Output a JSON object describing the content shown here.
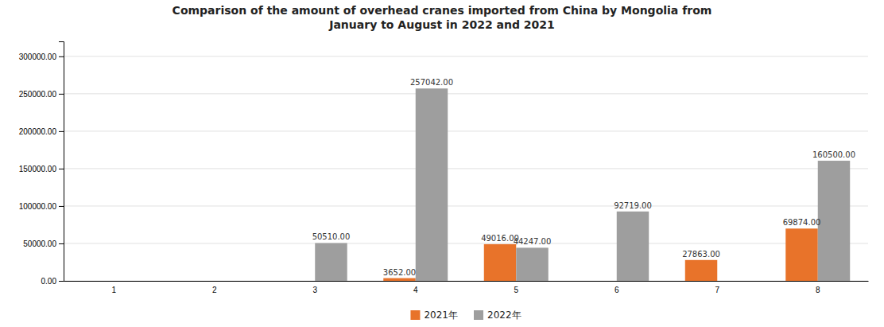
{
  "chart_data": {
    "type": "bar",
    "title": "Comparison of the amount of overhead cranes imported from China by Mongolia from\nJanuary to August in 2022 and 2021",
    "categories": [
      "1",
      "2",
      "3",
      "4",
      "5",
      "6",
      "7",
      "8"
    ],
    "series": [
      {
        "name": "2021年",
        "color": "#E8732A",
        "values": [
          0,
          0,
          0,
          3652.0,
          49016.0,
          0,
          27863.0,
          69874.0
        ],
        "value_labels": [
          null,
          null,
          null,
          "3652.00",
          "49016.00",
          null,
          "27863.00",
          "69874.00"
        ]
      },
      {
        "name": "2022年",
        "color": "#9E9E9E",
        "values": [
          0,
          0,
          50510.0,
          257042.0,
          44247.0,
          92719.0,
          0,
          160500.0
        ],
        "value_labels": [
          null,
          null,
          "50510.00",
          "257042.00",
          "44247.00",
          "92719.00",
          null,
          "160500.00"
        ]
      }
    ],
    "ylim": [
      0,
      320000
    ],
    "yticks": [
      {
        "value": 0,
        "label": "0.00"
      },
      {
        "value": 50000,
        "label": "50000.00"
      },
      {
        "value": 100000,
        "label": "100000.00"
      },
      {
        "value": 150000,
        "label": "150000.00"
      },
      {
        "value": 200000,
        "label": "200000.00"
      },
      {
        "value": 250000,
        "label": "250000.00"
      },
      {
        "value": 300000,
        "label": "300000.00"
      }
    ],
    "grid": true,
    "data_labels": true,
    "legend": "bottom"
  }
}
